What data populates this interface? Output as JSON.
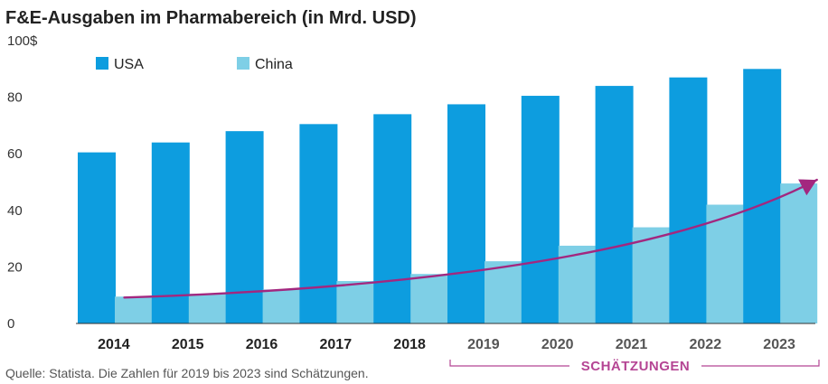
{
  "chart_data": {
    "type": "bar",
    "title": "F&E-Ausgaben im Pharmabereich (in Mrd. USD)",
    "categories": [
      "2014",
      "2015",
      "2016",
      "2017",
      "2018",
      "2019",
      "2020",
      "2021",
      "2022",
      "2023"
    ],
    "series": [
      {
        "name": "USA",
        "values": [
          60.5,
          64,
          68,
          70.5,
          74,
          77.5,
          80.5,
          84,
          87,
          90
        ]
      },
      {
        "name": "China",
        "values": [
          9.5,
          10.5,
          12,
          15,
          17.5,
          22,
          27.5,
          34,
          42,
          49.5
        ]
      }
    ],
    "y_ticks": [
      "0",
      "20",
      "40",
      "60",
      "80",
      "100$"
    ],
    "ylim": [
      0,
      100
    ],
    "legend_position": "top-left",
    "grid": false,
    "trend_arrow": {
      "from": "2014",
      "to": "2023",
      "over": "China"
    },
    "estimate_label": "SCHÄTZUNGEN",
    "estimate_categories": [
      "2019",
      "2020",
      "2021",
      "2022",
      "2023"
    ],
    "source": "Quelle: Statista. Die Zahlen für 2019 bis 2023 sind Schätzungen.",
    "colors": {
      "usa": "#0d9ddf",
      "china": "#7ecfe6",
      "arrow": "#a3277f",
      "axis": "#333333",
      "tick_actual": "#222222",
      "tick_estimate": "#555555",
      "bracket": "#b54594"
    }
  }
}
